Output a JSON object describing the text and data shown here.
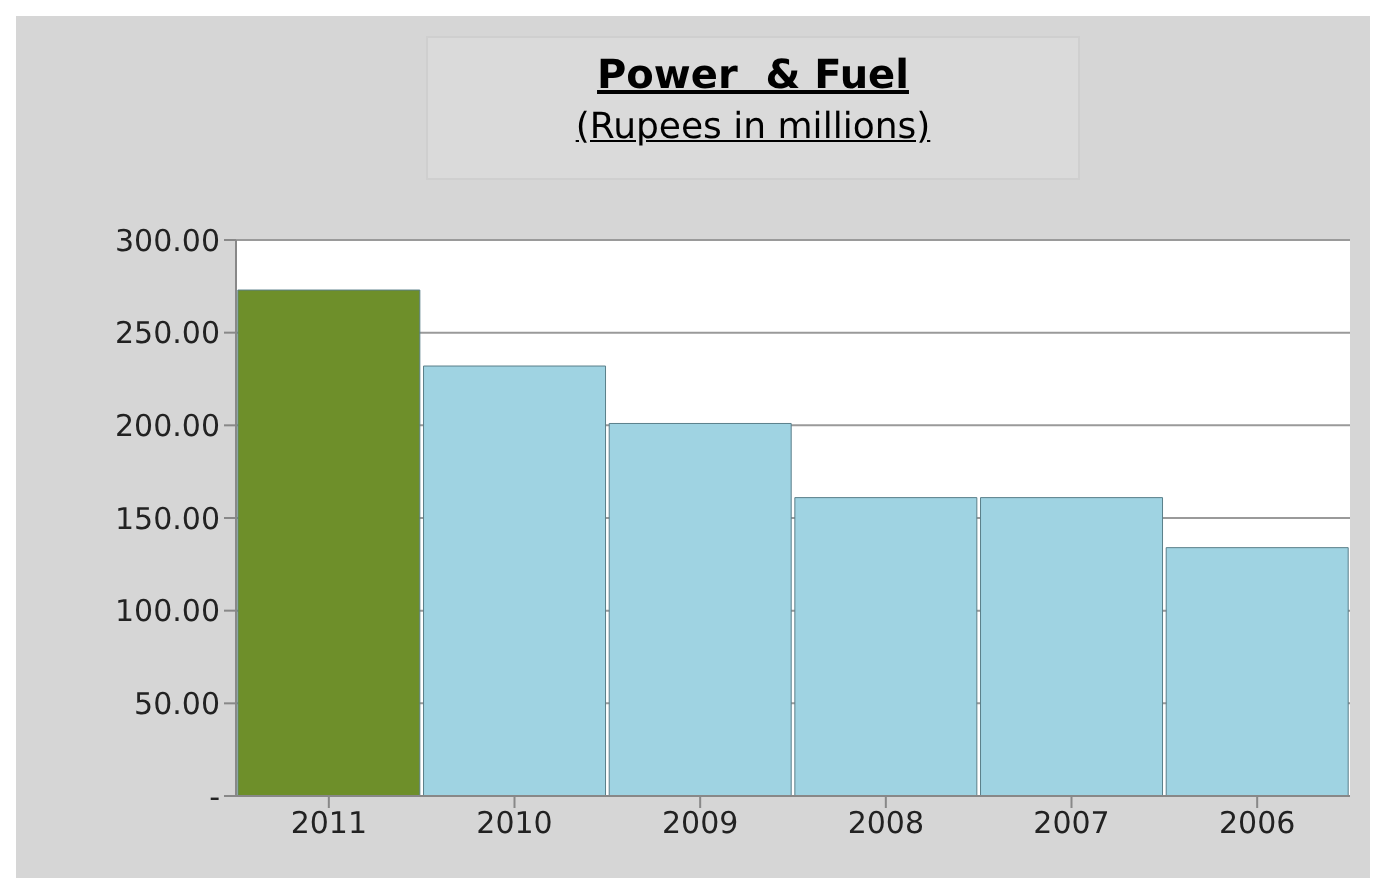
{
  "chart_data": {
    "type": "bar",
    "title": "Power  & Fuel",
    "subtitle": "(Rupees in millions)",
    "categories": [
      "2011",
      "2010",
      "2009",
      "2008",
      "2007",
      "2006"
    ],
    "values": [
      273,
      232,
      201,
      161,
      161,
      134
    ],
    "colors": [
      "#6e8f2a",
      "#9fd3e2",
      "#9fd3e2",
      "#9fd3e2",
      "#9fd3e2",
      "#9fd3e2"
    ],
    "ylim": [
      0,
      300
    ],
    "yticks": [
      {
        "value": 0,
        "label": "-"
      },
      {
        "value": 50,
        "label": "50.00"
      },
      {
        "value": 100,
        "label": "100.00"
      },
      {
        "value": 150,
        "label": "150.00"
      },
      {
        "value": 200,
        "label": "200.00"
      },
      {
        "value": 250,
        "label": "250.00"
      },
      {
        "value": 300,
        "label": "300.00"
      }
    ],
    "grid": "y"
  }
}
